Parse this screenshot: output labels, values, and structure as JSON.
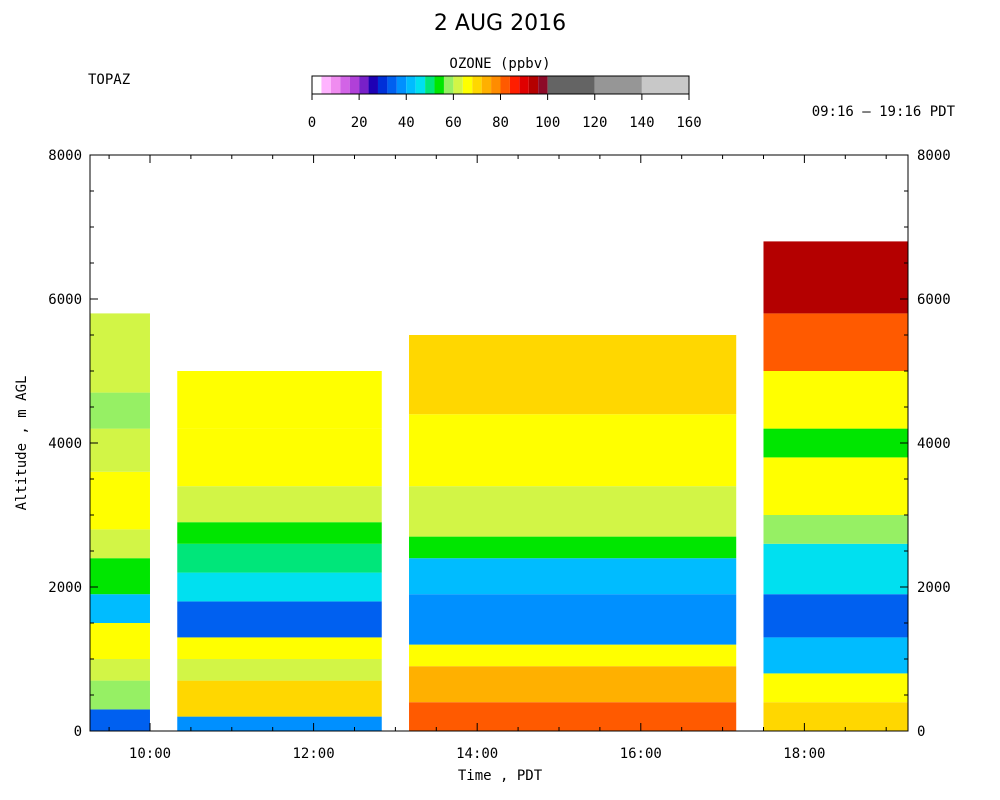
{
  "chart_data": {
    "type": "heatmap",
    "title": "2 AUG 2016",
    "site": "TOPAZ",
    "time_range": "09:16 – 19:16 PDT",
    "xlabel": "Time , PDT",
    "ylabel": "Altitude , m AGL",
    "xlim": [
      "09:16",
      "19:16"
    ],
    "ylim": [
      0,
      8000
    ],
    "x_ticks": [
      "10:00",
      "12:00",
      "14:00",
      "16:00",
      "18:00"
    ],
    "y_ticks": [
      0,
      2000,
      4000,
      6000,
      8000
    ],
    "grid": false,
    "colorbar": {
      "title": "OZONE (ppbv)",
      "ticks": [
        0,
        20,
        40,
        60,
        80,
        100,
        120,
        140,
        160
      ],
      "scale": [
        {
          "from": 0,
          "to": 4,
          "color": "#ffffff"
        },
        {
          "from": 4,
          "to": 8,
          "color": "#ffb4ff"
        },
        {
          "from": 8,
          "to": 12,
          "color": "#f08cf0"
        },
        {
          "from": 12,
          "to": 16,
          "color": "#d264e6"
        },
        {
          "from": 16,
          "to": 20,
          "color": "#b040d8"
        },
        {
          "from": 20,
          "to": 24,
          "color": "#7820c8"
        },
        {
          "from": 24,
          "to": 28,
          "color": "#1e00b4"
        },
        {
          "from": 28,
          "to": 32,
          "color": "#0030d8"
        },
        {
          "from": 32,
          "to": 36,
          "color": "#0060f0"
        },
        {
          "from": 36,
          "to": 40,
          "color": "#0090ff"
        },
        {
          "from": 40,
          "to": 44,
          "color": "#00bcff"
        },
        {
          "from": 44,
          "to": 48,
          "color": "#00e0f0"
        },
        {
          "from": 48,
          "to": 52,
          "color": "#00e67a"
        },
        {
          "from": 52,
          "to": 56,
          "color": "#00e600"
        },
        {
          "from": 56,
          "to": 60,
          "color": "#96f064"
        },
        {
          "from": 60,
          "to": 64,
          "color": "#d2f546"
        },
        {
          "from": 64,
          "to": 68,
          "color": "#ffff00"
        },
        {
          "from": 68,
          "to": 72,
          "color": "#ffd700"
        },
        {
          "from": 72,
          "to": 76,
          "color": "#ffb000"
        },
        {
          "from": 76,
          "to": 80,
          "color": "#ff8c00"
        },
        {
          "from": 80,
          "to": 84,
          "color": "#ff5a00"
        },
        {
          "from": 84,
          "to": 88,
          "color": "#ff1e00"
        },
        {
          "from": 88,
          "to": 92,
          "color": "#e00000"
        },
        {
          "from": 92,
          "to": 96,
          "color": "#b40000"
        },
        {
          "from": 96,
          "to": 100,
          "color": "#8c0a28"
        },
        {
          "from": 100,
          "to": 120,
          "color": "#646464"
        },
        {
          "from": 120,
          "to": 140,
          "color": "#969696"
        },
        {
          "from": 140,
          "to": 160,
          "color": "#c8c8c8"
        }
      ]
    },
    "profiles": [
      {
        "from": "09:16",
        "to": "10:00",
        "top_m": 5800,
        "layers": [
          [
            0,
            300,
            34
          ],
          [
            300,
            700,
            58
          ],
          [
            700,
            1000,
            62
          ],
          [
            1000,
            1500,
            66
          ],
          [
            1500,
            1900,
            42
          ],
          [
            1900,
            2400,
            54
          ],
          [
            2400,
            2800,
            60
          ],
          [
            2800,
            3600,
            64
          ],
          [
            3600,
            4200,
            60
          ],
          [
            4200,
            4700,
            56
          ],
          [
            4700,
            5800,
            62
          ]
        ]
      },
      {
        "from": "10:20",
        "to": "12:50",
        "top_m": 5000,
        "layers": [
          [
            0,
            200,
            36
          ],
          [
            200,
            700,
            70
          ],
          [
            700,
            1000,
            60
          ],
          [
            1000,
            1300,
            66
          ],
          [
            1300,
            1800,
            34
          ],
          [
            1800,
            2200,
            46
          ],
          [
            2200,
            2600,
            50
          ],
          [
            2600,
            2900,
            54
          ],
          [
            2900,
            3400,
            60
          ],
          [
            3400,
            4200,
            64
          ],
          [
            4200,
            5000,
            66
          ]
        ]
      },
      {
        "from": "13:10",
        "to": "17:10",
        "top_m": 5500,
        "layers": [
          [
            0,
            400,
            82
          ],
          [
            400,
            900,
            74
          ],
          [
            900,
            1200,
            66
          ],
          [
            1200,
            1900,
            36
          ],
          [
            1900,
            2400,
            42
          ],
          [
            2400,
            2700,
            54
          ],
          [
            2700,
            3400,
            62
          ],
          [
            3400,
            4400,
            64
          ],
          [
            4400,
            5500,
            70
          ]
        ]
      },
      {
        "from": "17:30",
        "to": "19:16",
        "top_m": 6800,
        "layers": [
          [
            0,
            400,
            70
          ],
          [
            400,
            800,
            64
          ],
          [
            800,
            1300,
            40
          ],
          [
            1300,
            1900,
            34
          ],
          [
            1900,
            2600,
            46
          ],
          [
            2600,
            3000,
            56
          ],
          [
            3000,
            3800,
            64
          ],
          [
            3800,
            4200,
            54
          ],
          [
            4200,
            5000,
            66
          ],
          [
            5000,
            5800,
            82
          ],
          [
            5800,
            6800,
            92
          ]
        ]
      }
    ]
  }
}
